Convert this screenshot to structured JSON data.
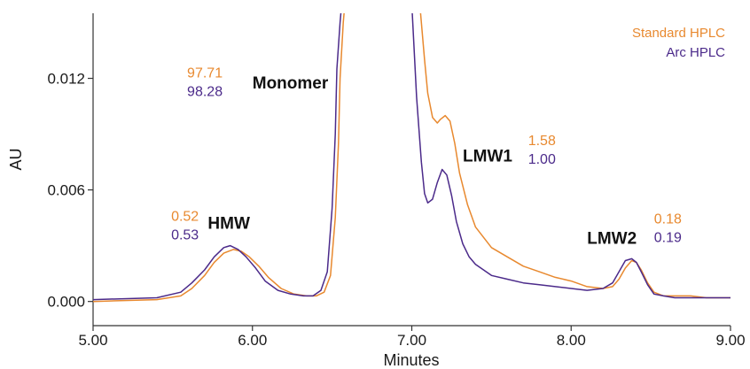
{
  "colors": {
    "standard": "#E8892F",
    "arc": "#4B2A8A",
    "axis": "#333333"
  },
  "chart_data": {
    "type": "line",
    "xlabel": "Minutes",
    "ylabel": "AU",
    "xlim": [
      5.0,
      9.0
    ],
    "ylim": [
      -0.0013,
      0.0155
    ],
    "xticks": [
      "5.00",
      "6.00",
      "7.00",
      "8.00",
      "9.00"
    ],
    "yticks": [
      "0.000",
      "0.006",
      "0.012"
    ],
    "grid": false,
    "legend_position": "top-right",
    "legend": [
      "Standard HPLC",
      "Arc HPLC"
    ],
    "series": [
      {
        "name": "Standard HPLC",
        "color": "#E8892F",
        "x": [
          5.0,
          5.4,
          5.55,
          5.62,
          5.7,
          5.76,
          5.82,
          5.88,
          5.93,
          5.98,
          6.04,
          6.1,
          6.18,
          6.26,
          6.34,
          6.4,
          6.45,
          6.49,
          6.52,
          6.54,
          6.55,
          6.57,
          6.58,
          6.59,
          7.05,
          7.08,
          7.1,
          7.13,
          7.16,
          7.18,
          7.21,
          7.24,
          7.27,
          7.3,
          7.35,
          7.4,
          7.5,
          7.6,
          7.7,
          7.8,
          7.9,
          8.0,
          8.1,
          8.2,
          8.26,
          8.3,
          8.34,
          8.38,
          8.41,
          8.44,
          8.48,
          8.52,
          8.58,
          8.65,
          8.75,
          8.85,
          9.0
        ],
        "y": [
          0.0,
          0.0001,
          0.0003,
          0.0007,
          0.0014,
          0.0021,
          0.0026,
          0.0028,
          0.0027,
          0.0024,
          0.0019,
          0.0013,
          0.0007,
          0.0004,
          0.0003,
          0.0003,
          0.0005,
          0.0014,
          0.0045,
          0.0085,
          0.012,
          0.015,
          0.016,
          0.016,
          0.016,
          0.013,
          0.0112,
          0.0099,
          0.0096,
          0.0098,
          0.01,
          0.0097,
          0.0085,
          0.0069,
          0.0052,
          0.004,
          0.0029,
          0.0024,
          0.0019,
          0.0016,
          0.0013,
          0.0011,
          0.0008,
          0.0007,
          0.0008,
          0.0012,
          0.0018,
          0.0022,
          0.0021,
          0.0017,
          0.001,
          0.0005,
          0.0003,
          0.0003,
          0.0003,
          0.0002,
          0.0002
        ]
      },
      {
        "name": "Arc HPLC",
        "color": "#4B2A8A",
        "x": [
          5.0,
          5.4,
          5.55,
          5.62,
          5.7,
          5.76,
          5.82,
          5.86,
          5.91,
          5.96,
          6.02,
          6.08,
          6.16,
          6.24,
          6.32,
          6.38,
          6.43,
          6.47,
          6.5,
          6.52,
          6.53,
          6.55,
          6.56,
          6.57,
          7.0,
          7.03,
          7.06,
          7.08,
          7.1,
          7.13,
          7.16,
          7.19,
          7.22,
          7.25,
          7.28,
          7.32,
          7.36,
          7.4,
          7.45,
          7.5,
          7.6,
          7.7,
          7.8,
          7.9,
          8.0,
          8.1,
          8.2,
          8.26,
          8.3,
          8.34,
          8.38,
          8.41,
          8.44,
          8.48,
          8.52,
          8.58,
          8.65,
          8.75,
          8.85,
          9.0
        ],
        "y": [
          0.0001,
          0.0002,
          0.0005,
          0.001,
          0.0017,
          0.0024,
          0.0029,
          0.003,
          0.0028,
          0.0024,
          0.0018,
          0.0011,
          0.0006,
          0.0004,
          0.0003,
          0.0003,
          0.0006,
          0.0016,
          0.005,
          0.009,
          0.0125,
          0.015,
          0.016,
          0.016,
          0.016,
          0.011,
          0.0075,
          0.0058,
          0.0053,
          0.0055,
          0.0064,
          0.0071,
          0.0068,
          0.0057,
          0.0043,
          0.0031,
          0.0024,
          0.002,
          0.0017,
          0.0014,
          0.0012,
          0.001,
          0.0009,
          0.0008,
          0.0007,
          0.0006,
          0.0007,
          0.001,
          0.0016,
          0.0022,
          0.0023,
          0.0021,
          0.0016,
          0.0009,
          0.0004,
          0.0003,
          0.0002,
          0.0002,
          0.0002,
          0.0002
        ]
      }
    ],
    "peak_labels": [
      {
        "text": "HMW",
        "x": 5.72,
        "y": 0.00392
      },
      {
        "text": "Monomer",
        "x": 6.0,
        "y": 0.01145
      },
      {
        "text": "LMW1",
        "x": 7.32,
        "y": 0.00752
      },
      {
        "text": "LMW2",
        "x": 8.1,
        "y": 0.0031
      }
    ],
    "annotations": [
      {
        "standard": "0.52",
        "arc": "0.53",
        "x": 5.49,
        "y": 0.00435
      },
      {
        "standard": "97.71",
        "arc": "98.28",
        "x": 5.59,
        "y": 0.01205
      },
      {
        "standard": "1.58",
        "arc": "1.00",
        "x": 7.73,
        "y": 0.0084
      },
      {
        "standard": "0.18",
        "arc": "0.19",
        "x": 8.52,
        "y": 0.0042
      }
    ]
  }
}
